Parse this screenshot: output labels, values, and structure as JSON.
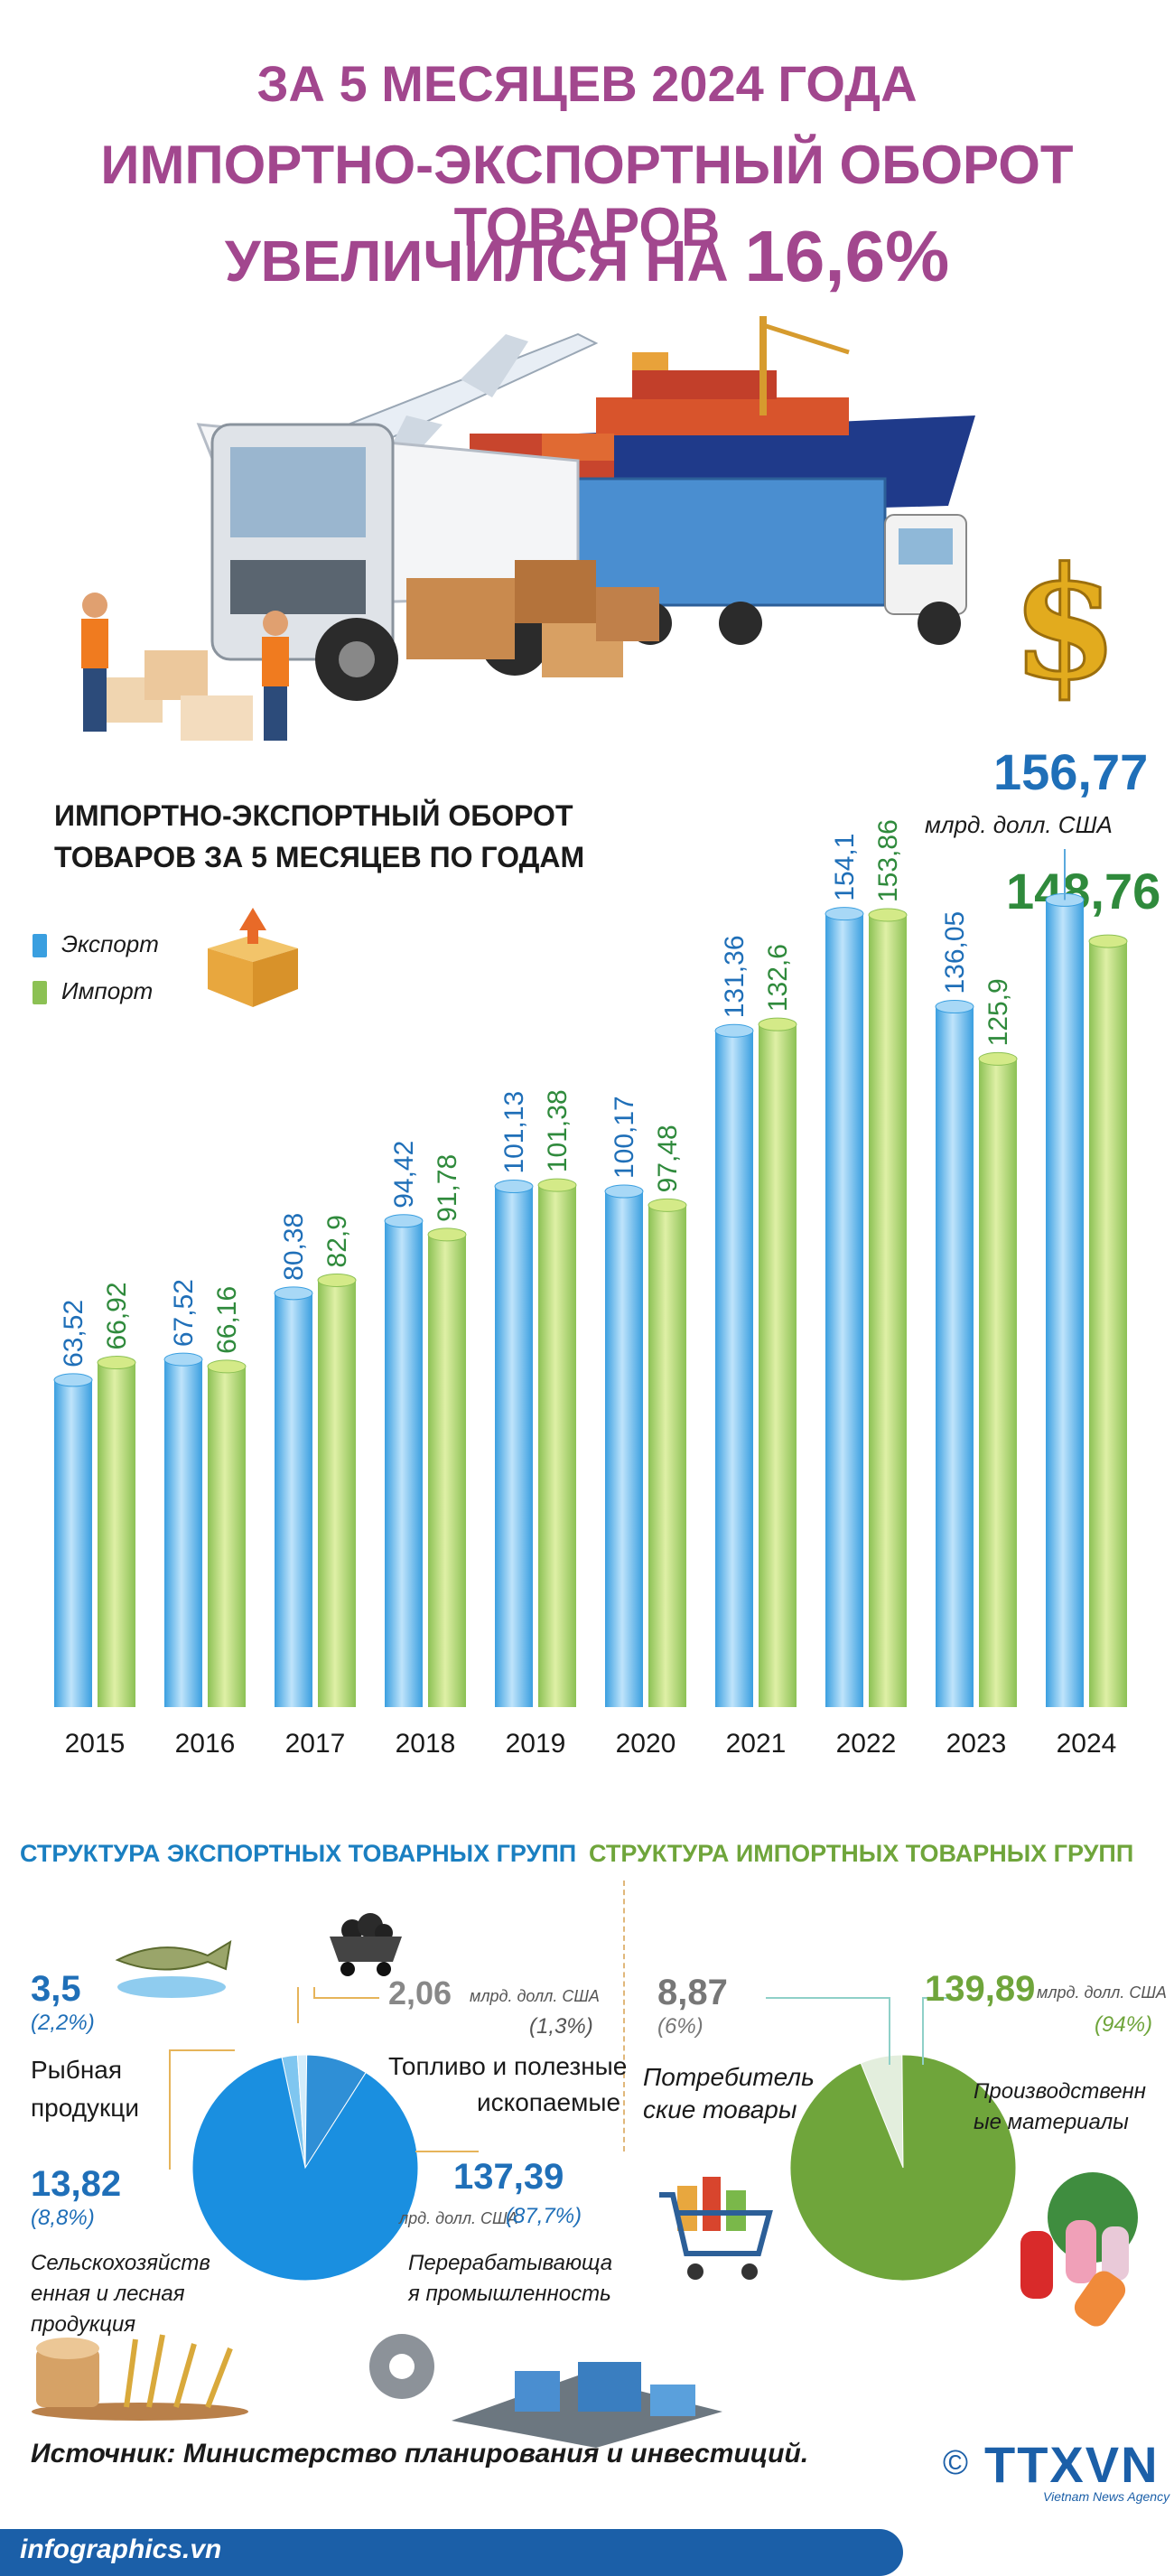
{
  "header": {
    "line1": "ЗА 5 МЕСЯЦЕВ 2024 ГОДА",
    "line2": "ИМПОРТНО-ЭКСПОРТНЫЙ ОБОРОТ ТОВАРОВ",
    "line3_prefix": "УВЕЛИЧИЛСЯ НА ",
    "line3_value": "16,6%"
  },
  "colors": {
    "title": "#a2478e",
    "export_bar": "#3a9fe0",
    "import_bar": "#8cc154",
    "export_text": "#1f6fb8",
    "import_text": "#2f8a3c",
    "export_section": "#1a7fc1",
    "import_section": "#6fa53b"
  },
  "chart_data": [
    {
      "type": "bar",
      "title": "ИМПОРТНО-ЭКСПОРТНЫЙ ОБОРОТ ТОВАРОВ ЗА 5 МЕСЯЦЕВ ПО ГОДАМ",
      "categories": [
        "2015",
        "2016",
        "2017",
        "2018",
        "2019",
        "2020",
        "2021",
        "2022",
        "2023",
        "2024"
      ],
      "series": [
        {
          "name": "Экспорт",
          "values": [
            63.52,
            67.52,
            80.38,
            94.42,
            101.13,
            100.17,
            131.36,
            154.1,
            136.05,
            156.77
          ],
          "labels": [
            "63,52",
            "67,52",
            "80,38",
            "94,42",
            "101,13",
            "100,17",
            "131,36",
            "154,1",
            "136,05",
            "156,77"
          ]
        },
        {
          "name": "Импорт",
          "values": [
            66.92,
            66.16,
            82.9,
            91.78,
            101.38,
            97.48,
            132.6,
            153.86,
            125.9,
            148.76
          ],
          "labels": [
            "66,92",
            "66,16",
            "82,9",
            "91,78",
            "101,38",
            "97,48",
            "132,6",
            "153,86",
            "125,9",
            "148,76"
          ]
        }
      ],
      "highlight": {
        "export_value": "156,77",
        "unit": "млрд. долл. США",
        "import_value": "148,76"
      },
      "legend": [
        "Экспорт",
        "Импорт"
      ]
    },
    {
      "type": "pie",
      "title": "СТРУКТУРА ЭКСПОРТНЫХ ТОВАРНЫХ ГРУПП",
      "slices": [
        {
          "label": "Рыбная продукци",
          "value": 3.5,
          "value_text": "3,5",
          "pct": "(2,2%)"
        },
        {
          "label": "Топливо и полезные ископаемые",
          "value": 2.06,
          "value_text": "2,06",
          "pct": "(1,3%)"
        },
        {
          "label": "Сельскохозяйственная и лесная продукция",
          "value": 13.82,
          "value_text": "13,82",
          "pct": "(8,8%)"
        },
        {
          "label": "Перерабатывающая промышленность",
          "value": 137.39,
          "value_text": "137,39",
          "pct": "(87,7%)"
        }
      ]
    },
    {
      "type": "pie",
      "title": "СТРУКТУРА ИМПОРТНЫХ ТОВАРНЫХ ГРУПП",
      "slices": [
        {
          "label": "Потребительские товары",
          "value": 8.87,
          "value_text": "8,87",
          "pct": "(6%)"
        },
        {
          "label": "Производственные материалы",
          "value": 139.89,
          "value_text": "139,89",
          "pct": "(94%)"
        }
      ]
    }
  ],
  "export_labels": {
    "fish_value": "3,5",
    "fish_pct": "(2,2%)",
    "fish_label_1": "Рыбная",
    "fish_label_2": "продукци",
    "fuel_value": "2,06",
    "fuel_unit": "млрд. долл. США",
    "fuel_pct": "(1,3%)",
    "fuel_label_1": "Топливо и полезные",
    "fuel_label_2": "ископаемые",
    "agri_value": "13,82",
    "agri_pct": "(8,8%)",
    "agri_label_1": "Сельскохозяйств",
    "agri_label_2": "енная и лесная",
    "agri_label_3": "продукция",
    "proc_value": "137,39",
    "proc_unit": "лрд. долл. США",
    "proc_pct": "(87,7%)",
    "proc_label_1": "Перерабатывающа",
    "proc_label_2": "я промышленность"
  },
  "import_labels": {
    "cons_value": "8,87",
    "cons_pct": "(6%)",
    "cons_label_1": "Потребитель",
    "cons_label_2": "ские товары",
    "prod_value": "139,89",
    "prod_unit": "млрд. долл. США",
    "prod_pct": "(94%)",
    "prod_label_1": "Производственн",
    "prod_label_2": "ые материалы"
  },
  "footer": {
    "source": "Источник: Министерство планирования и инвестиций.",
    "site": "infographics.vn",
    "copyright": "©",
    "logo": "TTXVN",
    "logo_sub": "Vietnam News Agency"
  }
}
